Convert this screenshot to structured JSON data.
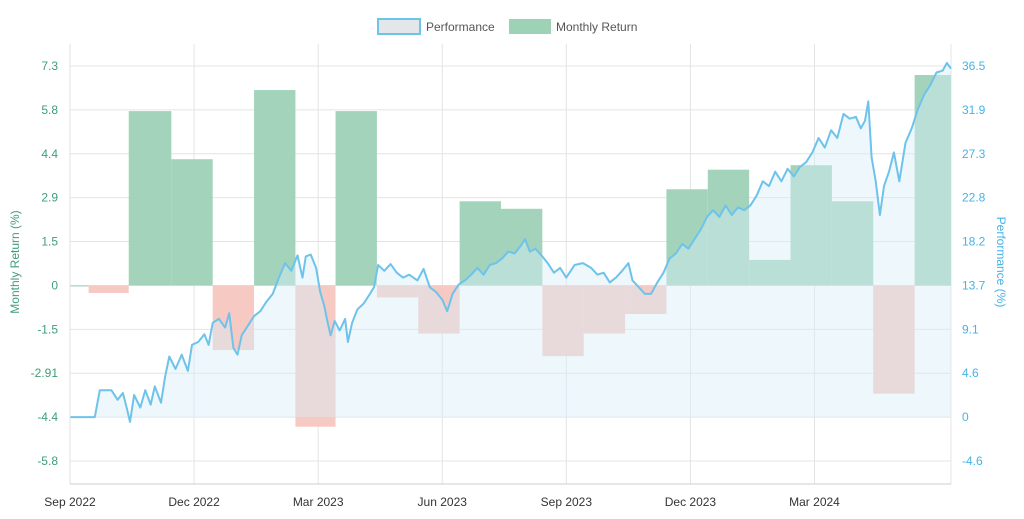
{
  "chart_data": {
    "type": "bar+area",
    "title": "",
    "legend": {
      "position": "top-center",
      "items": [
        {
          "name": "Performance",
          "style": "area",
          "color": "#6ec3ea",
          "fill": "#e3e7ea"
        },
        {
          "name": "Monthly Return",
          "style": "bar",
          "color": "#9ed2b7"
        }
      ]
    },
    "colors": {
      "positive_bar": "#9ed2b7",
      "negative_bar": "#f6c6c0",
      "negative_bar_strong": "#f9a89c",
      "positive_bar_strong": "#7fc4a1",
      "performance_line": "#6ec3ea",
      "left_axis_text": "#3f9e77",
      "right_axis_text": "#45b3e6",
      "grid": "#e4e4e4"
    },
    "x_axis": {
      "labels": [
        "Sep 2022",
        "Dec 2022",
        "Mar 2023",
        "Jun 2023",
        "Sep 2023",
        "Dec 2023",
        "Mar 2024"
      ],
      "label_months": [
        0,
        3,
        6,
        9,
        12,
        15,
        18
      ],
      "range_months": [
        0,
        21.3
      ]
    },
    "left_axis": {
      "title": "Monthly Return (%)",
      "ticks": [
        "7.3",
        "5.8",
        "4.4",
        "2.9",
        "1.5",
        "0",
        "-1.5",
        "-2.91",
        "-4.4",
        "-5.8"
      ],
      "range": [
        -6.5,
        8.0
      ]
    },
    "right_axis": {
      "title": "Performance (%)",
      "ticks": [
        "36.5",
        "31.9",
        "27.3",
        "22.8",
        "18.2",
        "13.7",
        "9.1",
        "4.6",
        "0",
        "-4.6"
      ],
      "range": [
        -6.8,
        38.8
      ]
    },
    "monthly_returns": [
      {
        "month": "Sep 2022",
        "start": 0.0,
        "end": 0.45,
        "value": 0.0
      },
      {
        "month": "Oct 2022",
        "start": 0.45,
        "end": 1.42,
        "value": -0.25
      },
      {
        "month": "Nov 2022",
        "start": 1.42,
        "end": 2.45,
        "value": 5.8
      },
      {
        "month": "Dec 2022",
        "start": 2.45,
        "end": 3.45,
        "value": 4.2
      },
      {
        "month": "Jan 2023",
        "start": 3.45,
        "end": 4.45,
        "value": -2.15
      },
      {
        "month": "Feb 2023",
        "start": 4.45,
        "end": 5.45,
        "value": 6.5
      },
      {
        "month": "Mar 2023",
        "start": 5.45,
        "end": 6.42,
        "value": -4.7
      },
      {
        "month": "Apr 2023",
        "start": 6.42,
        "end": 7.42,
        "value": 5.8
      },
      {
        "month": "May 2023",
        "start": 7.42,
        "end": 8.42,
        "value": -0.4
      },
      {
        "month": "Jun 2023",
        "start": 8.42,
        "end": 9.42,
        "value": -1.6
      },
      {
        "month": "Jul 2023",
        "start": 9.42,
        "end": 10.42,
        "value": 2.8
      },
      {
        "month": "Aug 2023",
        "start": 10.42,
        "end": 11.42,
        "value": 2.55
      },
      {
        "month": "Sep 2023",
        "start": 11.42,
        "end": 12.42,
        "value": -2.35
      },
      {
        "month": "Oct 2023",
        "start": 12.42,
        "end": 13.42,
        "value": -1.6
      },
      {
        "month": "Nov 2023",
        "start": 13.42,
        "end": 14.42,
        "value": -0.95
      },
      {
        "month": "Dec 2023",
        "start": 14.42,
        "end": 15.42,
        "value": 3.2
      },
      {
        "month": "Jan 2024",
        "start": 15.42,
        "end": 16.42,
        "value": 3.85
      },
      {
        "month": "Feb 2024",
        "start": 16.42,
        "end": 17.42,
        "value": 0.85
      },
      {
        "month": "Mar 2024",
        "start": 17.42,
        "end": 18.42,
        "value": 4.0
      },
      {
        "month": "Apr 2024",
        "start": 18.42,
        "end": 19.42,
        "value": 2.8
      },
      {
        "month": "May 2024",
        "start": 19.42,
        "end": 20.42,
        "value": -3.6
      },
      {
        "month": "Jun 2024",
        "start": 20.42,
        "end": 21.3,
        "value": 7.0
      }
    ],
    "performance": [
      {
        "m": 0.0,
        "v": 0.0
      },
      {
        "m": 0.3,
        "v": 0.0
      },
      {
        "m": 0.6,
        "v": 0.0
      },
      {
        "m": 0.72,
        "v": 2.8
      },
      {
        "m": 1.0,
        "v": 2.8
      },
      {
        "m": 1.15,
        "v": 1.8
      },
      {
        "m": 1.28,
        "v": 2.5
      },
      {
        "m": 1.38,
        "v": 0.8
      },
      {
        "m": 1.45,
        "v": -0.5
      },
      {
        "m": 1.55,
        "v": 2.3
      },
      {
        "m": 1.7,
        "v": 1.0
      },
      {
        "m": 1.82,
        "v": 2.8
      },
      {
        "m": 1.95,
        "v": 1.3
      },
      {
        "m": 2.05,
        "v": 3.2
      },
      {
        "m": 2.2,
        "v": 1.5
      },
      {
        "m": 2.3,
        "v": 4.2
      },
      {
        "m": 2.4,
        "v": 6.3
      },
      {
        "m": 2.55,
        "v": 5.0
      },
      {
        "m": 2.7,
        "v": 6.5
      },
      {
        "m": 2.85,
        "v": 4.8
      },
      {
        "m": 2.95,
        "v": 7.5
      },
      {
        "m": 3.1,
        "v": 7.8
      },
      {
        "m": 3.25,
        "v": 8.6
      },
      {
        "m": 3.35,
        "v": 7.5
      },
      {
        "m": 3.45,
        "v": 9.8
      },
      {
        "m": 3.6,
        "v": 10.2
      },
      {
        "m": 3.75,
        "v": 9.3
      },
      {
        "m": 3.85,
        "v": 10.8
      },
      {
        "m": 3.95,
        "v": 7.2
      },
      {
        "m": 4.05,
        "v": 6.5
      },
      {
        "m": 4.15,
        "v": 8.5
      },
      {
        "m": 4.3,
        "v": 9.5
      },
      {
        "m": 4.45,
        "v": 10.5
      },
      {
        "m": 4.6,
        "v": 11.0
      },
      {
        "m": 4.75,
        "v": 12.0
      },
      {
        "m": 4.9,
        "v": 12.8
      },
      {
        "m": 5.05,
        "v": 14.5
      },
      {
        "m": 5.2,
        "v": 16.0
      },
      {
        "m": 5.35,
        "v": 15.2
      },
      {
        "m": 5.5,
        "v": 16.8
      },
      {
        "m": 5.62,
        "v": 14.5
      },
      {
        "m": 5.7,
        "v": 16.7
      },
      {
        "m": 5.82,
        "v": 16.9
      },
      {
        "m": 5.95,
        "v": 15.5
      },
      {
        "m": 6.05,
        "v": 13.0
      },
      {
        "m": 6.15,
        "v": 11.5
      },
      {
        "m": 6.22,
        "v": 10.0
      },
      {
        "m": 6.3,
        "v": 8.5
      },
      {
        "m": 6.4,
        "v": 10.0
      },
      {
        "m": 6.52,
        "v": 9.0
      },
      {
        "m": 6.65,
        "v": 10.2
      },
      {
        "m": 6.72,
        "v": 7.8
      },
      {
        "m": 6.82,
        "v": 9.8
      },
      {
        "m": 6.95,
        "v": 11.2
      },
      {
        "m": 7.1,
        "v": 11.8
      },
      {
        "m": 7.25,
        "v": 12.8
      },
      {
        "m": 7.35,
        "v": 13.5
      },
      {
        "m": 7.45,
        "v": 15.8
      },
      {
        "m": 7.6,
        "v": 15.2
      },
      {
        "m": 7.75,
        "v": 15.9
      },
      {
        "m": 7.9,
        "v": 15.0
      },
      {
        "m": 8.05,
        "v": 14.5
      },
      {
        "m": 8.2,
        "v": 14.8
      },
      {
        "m": 8.4,
        "v": 14.2
      },
      {
        "m": 8.55,
        "v": 15.4
      },
      {
        "m": 8.7,
        "v": 13.5
      },
      {
        "m": 8.85,
        "v": 13.0
      },
      {
        "m": 9.0,
        "v": 12.2
      },
      {
        "m": 9.12,
        "v": 11.0
      },
      {
        "m": 9.25,
        "v": 12.8
      },
      {
        "m": 9.4,
        "v": 13.8
      },
      {
        "m": 9.55,
        "v": 14.2
      },
      {
        "m": 9.7,
        "v": 14.8
      },
      {
        "m": 9.85,
        "v": 15.5
      },
      {
        "m": 10.0,
        "v": 14.8
      },
      {
        "m": 10.15,
        "v": 15.8
      },
      {
        "m": 10.3,
        "v": 16.0
      },
      {
        "m": 10.45,
        "v": 16.5
      },
      {
        "m": 10.6,
        "v": 17.2
      },
      {
        "m": 10.75,
        "v": 17.0
      },
      {
        "m": 10.9,
        "v": 17.8
      },
      {
        "m": 11.0,
        "v": 18.5
      },
      {
        "m": 11.12,
        "v": 17.2
      },
      {
        "m": 11.25,
        "v": 17.5
      },
      {
        "m": 11.4,
        "v": 16.8
      },
      {
        "m": 11.55,
        "v": 16.0
      },
      {
        "m": 11.7,
        "v": 15.0
      },
      {
        "m": 11.85,
        "v": 15.5
      },
      {
        "m": 12.0,
        "v": 14.5
      },
      {
        "m": 12.2,
        "v": 15.8
      },
      {
        "m": 12.4,
        "v": 16.0
      },
      {
        "m": 12.6,
        "v": 15.5
      },
      {
        "m": 12.75,
        "v": 14.8
      },
      {
        "m": 12.9,
        "v": 15.0
      },
      {
        "m": 13.05,
        "v": 14.0
      },
      {
        "m": 13.2,
        "v": 14.5
      },
      {
        "m": 13.35,
        "v": 15.2
      },
      {
        "m": 13.5,
        "v": 16.0
      },
      {
        "m": 13.6,
        "v": 14.2
      },
      {
        "m": 13.75,
        "v": 13.5
      },
      {
        "m": 13.9,
        "v": 12.8
      },
      {
        "m": 14.05,
        "v": 12.8
      },
      {
        "m": 14.2,
        "v": 14.0
      },
      {
        "m": 14.35,
        "v": 15.0
      },
      {
        "m": 14.5,
        "v": 16.5
      },
      {
        "m": 14.65,
        "v": 17.0
      },
      {
        "m": 14.8,
        "v": 18.0
      },
      {
        "m": 14.95,
        "v": 17.5
      },
      {
        "m": 15.1,
        "v": 18.5
      },
      {
        "m": 15.25,
        "v": 19.5
      },
      {
        "m": 15.4,
        "v": 20.8
      },
      {
        "m": 15.55,
        "v": 21.5
      },
      {
        "m": 15.7,
        "v": 20.8
      },
      {
        "m": 15.85,
        "v": 22.0
      },
      {
        "m": 16.0,
        "v": 21.0
      },
      {
        "m": 16.15,
        "v": 21.8
      },
      {
        "m": 16.3,
        "v": 21.5
      },
      {
        "m": 16.45,
        "v": 22.0
      },
      {
        "m": 16.6,
        "v": 23.0
      },
      {
        "m": 16.75,
        "v": 24.5
      },
      {
        "m": 16.9,
        "v": 24.0
      },
      {
        "m": 17.05,
        "v": 25.5
      },
      {
        "m": 17.2,
        "v": 24.5
      },
      {
        "m": 17.35,
        "v": 25.8
      },
      {
        "m": 17.5,
        "v": 25.0
      },
      {
        "m": 17.65,
        "v": 26.0
      },
      {
        "m": 17.8,
        "v": 26.5
      },
      {
        "m": 17.95,
        "v": 27.5
      },
      {
        "m": 18.1,
        "v": 29.0
      },
      {
        "m": 18.25,
        "v": 28.0
      },
      {
        "m": 18.4,
        "v": 29.8
      },
      {
        "m": 18.55,
        "v": 29.0
      },
      {
        "m": 18.7,
        "v": 31.5
      },
      {
        "m": 18.85,
        "v": 31.0
      },
      {
        "m": 19.0,
        "v": 31.2
      },
      {
        "m": 19.12,
        "v": 30.0
      },
      {
        "m": 19.22,
        "v": 30.8
      },
      {
        "m": 19.3,
        "v": 32.8
      },
      {
        "m": 19.38,
        "v": 27.0
      },
      {
        "m": 19.48,
        "v": 24.5
      },
      {
        "m": 19.58,
        "v": 21.0
      },
      {
        "m": 19.68,
        "v": 24.0
      },
      {
        "m": 19.8,
        "v": 25.5
      },
      {
        "m": 19.92,
        "v": 27.5
      },
      {
        "m": 20.05,
        "v": 24.5
      },
      {
        "m": 20.2,
        "v": 28.5
      },
      {
        "m": 20.35,
        "v": 30.0
      },
      {
        "m": 20.5,
        "v": 32.0
      },
      {
        "m": 20.65,
        "v": 33.5
      },
      {
        "m": 20.8,
        "v": 34.5
      },
      {
        "m": 20.95,
        "v": 35.8
      },
      {
        "m": 21.1,
        "v": 36.0
      },
      {
        "m": 21.2,
        "v": 36.8
      },
      {
        "m": 21.3,
        "v": 36.2
      }
    ]
  }
}
